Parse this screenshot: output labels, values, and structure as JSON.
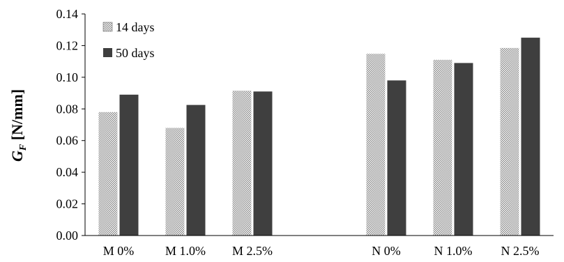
{
  "chart_data": {
    "type": "bar",
    "categories": [
      "M 0%",
      "M 1.0%",
      "M 2.5%",
      "",
      "N 0%",
      "N 1.0%",
      "N 2.5%"
    ],
    "series": [
      {
        "name": "14 days",
        "values": [
          0.078,
          0.068,
          0.0915,
          null,
          0.1148,
          0.111,
          0.1185
        ],
        "pattern": "checker"
      },
      {
        "name": "50 days",
        "values": [
          0.089,
          0.0825,
          0.091,
          null,
          0.098,
          0.109,
          0.125
        ],
        "color": "#3f3f3f"
      }
    ],
    "ylim": [
      0,
      0.14
    ],
    "yticks": [
      "0.00",
      "0.02",
      "0.04",
      "0.06",
      "0.08",
      "0.10",
      "0.12",
      "0.14"
    ],
    "ylabel_main": "G",
    "ylabel_sub": "F",
    "ylabel_unit": "[N/mm]",
    "xlabel": "",
    "grid": false,
    "legend_position": "top-left"
  }
}
